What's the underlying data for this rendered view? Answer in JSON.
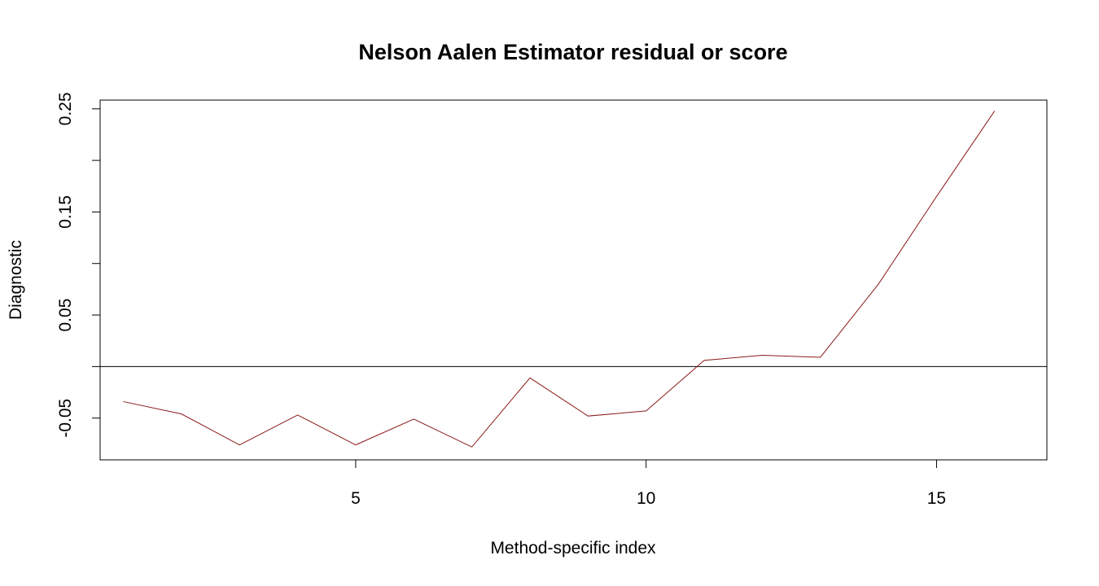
{
  "chart_data": {
    "type": "line",
    "title": "Nelson Aalen Estimator residual or score",
    "xlabel": "Method-specific index",
    "ylabel": "Diagnostic",
    "x": [
      1,
      2,
      3,
      4,
      5,
      6,
      7,
      8,
      9,
      10,
      11,
      12,
      13,
      14,
      15,
      16
    ],
    "series": [
      {
        "values": [
          -0.034,
          -0.046,
          -0.076,
          -0.047,
          -0.076,
          -0.051,
          -0.078,
          -0.011,
          -0.048,
          -0.043,
          0.006,
          0.011,
          0.009,
          0.08,
          0.165,
          0.248
        ],
        "color": "#8b1a1a"
      }
    ],
    "xlim": [
      0.6,
      16.9
    ],
    "ylim": [
      -0.0905,
      0.2585
    ],
    "x_ticks": [
      5,
      10,
      15
    ],
    "y_ticks": [
      -0.05,
      0.0,
      0.05,
      0.1,
      0.15,
      0.2,
      0.25
    ],
    "y_tick_labels": [
      "-0.05",
      "",
      "0.05",
      "",
      "0.15",
      "",
      "0.25"
    ],
    "reference_line": {
      "y": 0,
      "color": "#000000"
    },
    "grid": false,
    "legend": "none"
  }
}
